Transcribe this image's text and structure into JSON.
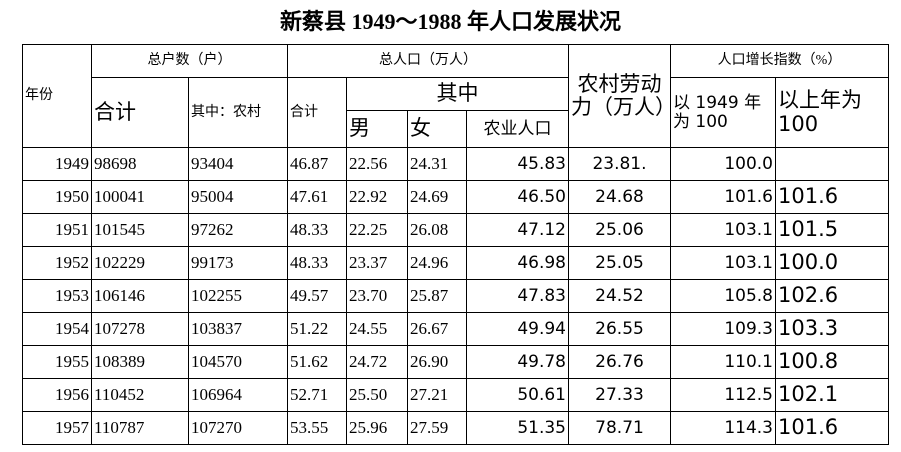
{
  "title": "新蔡县 1949～1988 年人口发展状况",
  "header": {
    "year": "年份",
    "households": "总户数（户）",
    "population": "总人口（万人）",
    "rural_labor": "农村劳动力（万人）",
    "growth_index": "人口增长指数（%）",
    "households_total": "合计",
    "households_rural": "其中：农村",
    "population_total": "合计",
    "of_which": "其中",
    "index_1949": "以 1949 年为 100",
    "index_prev_year": "以上年为 100",
    "male": "男",
    "female": "女",
    "agricultural": "农业人口"
  },
  "table": {
    "rows": [
      [
        "1949",
        "98698",
        "93404",
        "46.87",
        "22.56",
        "24.31",
        "45.83",
        "23.81.",
        "100.0",
        null
      ],
      [
        "1950",
        "100041",
        "95004",
        "47.61",
        "22.92",
        "24.69",
        "46.50",
        "24.68",
        "101.6",
        "101.6"
      ],
      [
        "1951",
        "101545",
        "97262",
        "48.33",
        "22.25",
        "26.08",
        "47.12",
        "25.06",
        "103.1",
        "101.5"
      ],
      [
        "1952",
        "102229",
        "99173",
        "48.33",
        "23.37",
        "24.96",
        "46.98",
        "25.05",
        "103.1",
        "100.0"
      ],
      [
        "1953",
        "106146",
        "102255",
        "49.57",
        "23.70",
        "25.87",
        "47.83",
        "24.52",
        "105.8",
        "102.6"
      ],
      [
        "1954",
        "107278",
        "103837",
        "51.22",
        "24.55",
        "26.67",
        "49.94",
        "26.55",
        "109.3",
        "103.3"
      ],
      [
        "1955",
        "108389",
        "104570",
        "51.62",
        "24.72",
        "26.90",
        "49.78",
        "26.76",
        "110.1",
        "100.8"
      ],
      [
        "1956",
        "110452",
        "106964",
        "52.71",
        "25.50",
        "27.21",
        "50.61",
        "27.33",
        "112.5",
        "102.1"
      ],
      [
        "1957",
        "110787",
        "107270",
        "53.55",
        "25.96",
        "27.59",
        "51.35",
        "78.71",
        "114.3",
        "101.6"
      ]
    ]
  }
}
